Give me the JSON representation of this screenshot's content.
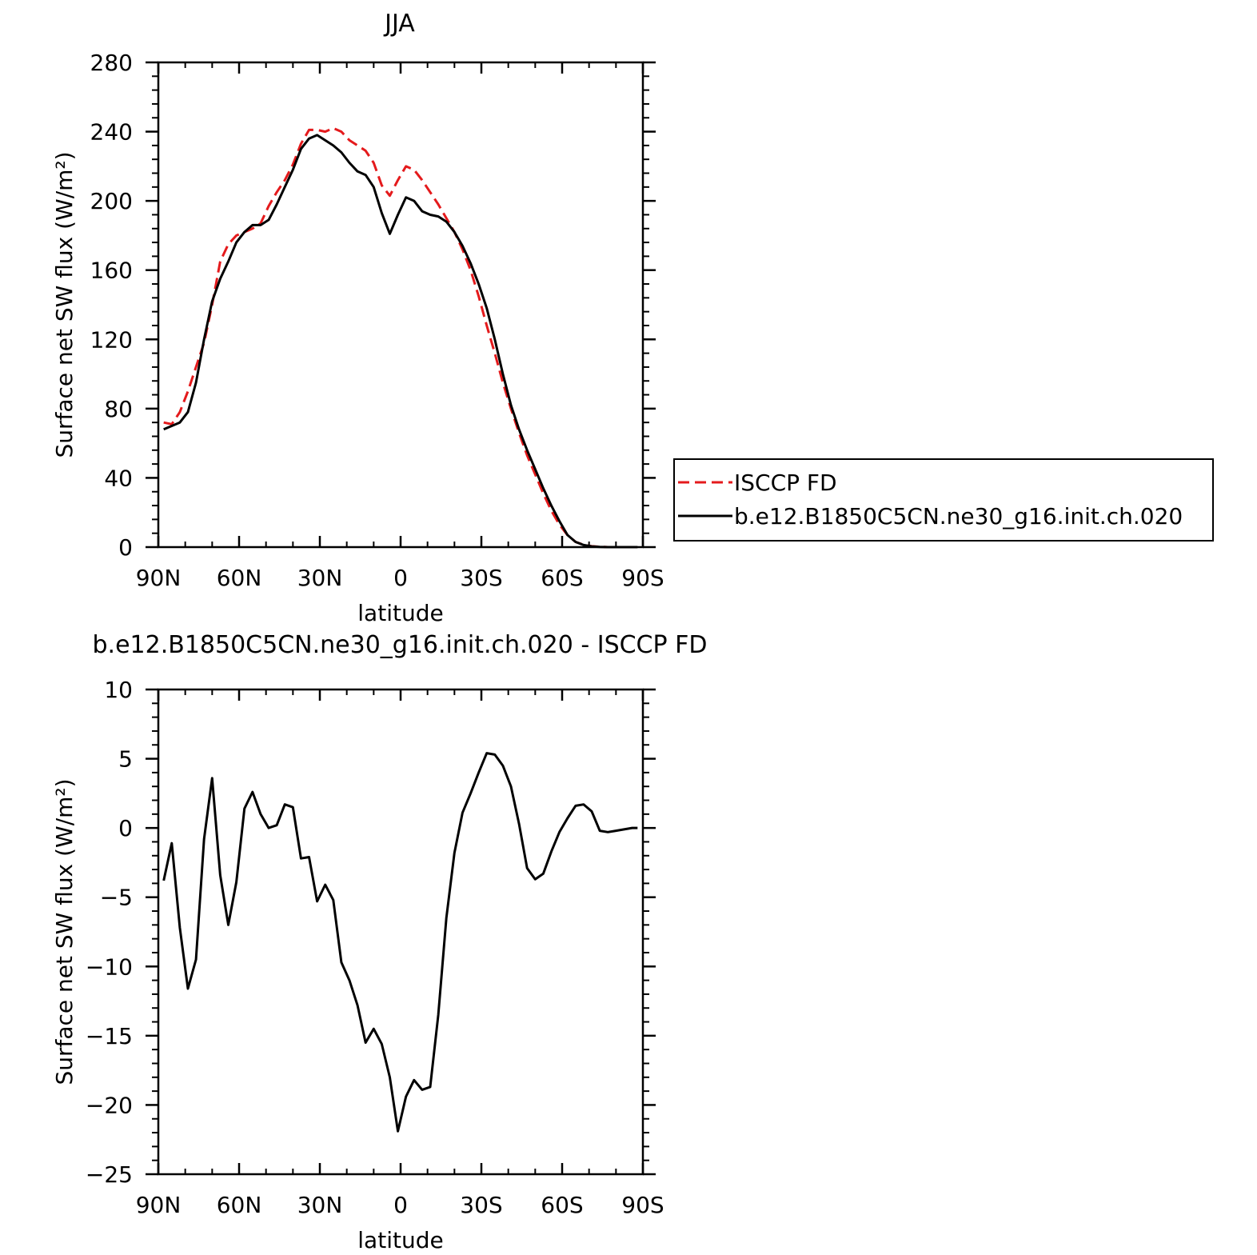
{
  "chart_data": [
    {
      "type": "line",
      "title": "JJA",
      "xlabel": "latitude",
      "ylabel": "Surface net SW flux (W/m²)",
      "xlim": [
        90,
        -90
      ],
      "ylim": [
        0,
        280
      ],
      "xticks": [
        90,
        60,
        30,
        0,
        -30,
        -60,
        -90
      ],
      "xtick_labels": [
        "90N",
        "60N",
        "30N",
        "0",
        "30S",
        "60S",
        "90S"
      ],
      "yticks": [
        0,
        40,
        80,
        120,
        160,
        200,
        240,
        280
      ],
      "ytick_labels": [
        "0",
        "40",
        "80",
        "120",
        "160",
        "200",
        "240",
        "280"
      ],
      "legend": "right",
      "series": [
        {
          "name": "ISCCP FD",
          "color": "#e41a1c",
          "dash": "dashed",
          "x": [
            88,
            85,
            82,
            79,
            76,
            73,
            70,
            67,
            64,
            61,
            58,
            55,
            52,
            49,
            46,
            43,
            40,
            37,
            34,
            31,
            28,
            25,
            22,
            19,
            16,
            13,
            10,
            7,
            4,
            1,
            -2,
            -5,
            -8,
            -11,
            -14,
            -17,
            -20,
            -23,
            -26,
            -29,
            -32,
            -35,
            -38,
            -41,
            -44,
            -47,
            -50,
            -53,
            -56,
            -59,
            -62,
            -65,
            -68,
            -71,
            -74,
            -77,
            -80,
            -83,
            -86,
            -88
          ],
          "y": [
            72,
            71,
            78,
            90,
            104,
            118,
            140,
            165,
            175,
            180,
            182,
            184,
            187,
            197,
            205,
            212,
            221,
            233,
            241,
            241,
            240,
            242,
            240,
            235,
            232,
            229,
            222,
            209,
            203,
            212,
            220,
            218,
            212,
            205,
            198,
            190,
            182,
            172,
            160,
            145,
            128,
            112,
            95,
            80,
            66,
            53,
            42,
            31,
            21,
            13,
            7,
            3,
            1.3,
            0.5,
            0.2,
            0,
            0,
            0,
            0,
            0
          ]
        },
        {
          "name": "b.e12.B1850C5CN.ne30_g16.init.ch.020",
          "color": "#000000",
          "dash": "solid",
          "x": [
            88,
            85,
            82,
            79,
            76,
            73,
            70,
            67,
            64,
            61,
            58,
            55,
            52,
            49,
            46,
            43,
            40,
            37,
            34,
            31,
            28,
            25,
            22,
            19,
            16,
            13,
            10,
            7,
            4,
            1,
            -2,
            -5,
            -8,
            -11,
            -14,
            -17,
            -20,
            -23,
            -26,
            -29,
            -32,
            -35,
            -38,
            -41,
            -44,
            -47,
            -50,
            -53,
            -56,
            -59,
            -62,
            -65,
            -68,
            -71,
            -74,
            -77,
            -80,
            -83,
            -86,
            -88
          ],
          "y": [
            68,
            70,
            72,
            78,
            95,
            120,
            142,
            155,
            165,
            176,
            182,
            186,
            186,
            189,
            198,
            208,
            218,
            230,
            236,
            238,
            235,
            232,
            228,
            222,
            217,
            215,
            208,
            193,
            181,
            192,
            202,
            200,
            194,
            192,
            191,
            188,
            182,
            174,
            164,
            152,
            138,
            120,
            100,
            82,
            68,
            56,
            45,
            34,
            24,
            15,
            7,
            3,
            1.2,
            0.4,
            0.1,
            0,
            0,
            0,
            0,
            0
          ]
        }
      ]
    },
    {
      "type": "line",
      "title": "b.e12.B1850C5CN.ne30_g16.init.ch.020 - ISCCP FD",
      "xlabel": "latitude",
      "ylabel": "Surface net SW flux (W/m²)",
      "xlim": [
        90,
        -90
      ],
      "ylim": [
        -25,
        10
      ],
      "xticks": [
        90,
        60,
        30,
        0,
        -30,
        -60,
        -90
      ],
      "xtick_labels": [
        "90N",
        "60N",
        "30N",
        "0",
        "30S",
        "60S",
        "90S"
      ],
      "yticks": [
        -25,
        -20,
        -15,
        -10,
        -5,
        0,
        5,
        10
      ],
      "ytick_labels": [
        "−25",
        "−20",
        "−15",
        "−10",
        "−5",
        "0",
        "5",
        "10"
      ],
      "series": [
        {
          "color": "#000000",
          "dash": "solid",
          "x": [
            88,
            85,
            82,
            79,
            76,
            73,
            70,
            67,
            64,
            61,
            58,
            55,
            52,
            49,
            46,
            43,
            40,
            37,
            34,
            31,
            28,
            25,
            22,
            19,
            16,
            13,
            10,
            7,
            4,
            1,
            -2,
            -5,
            -8,
            -11,
            -14,
            -17,
            -20,
            -23,
            -26,
            -29,
            -32,
            -35,
            -38,
            -41,
            -44,
            -47,
            -50,
            -53,
            -56,
            -59,
            -62,
            -65,
            -68,
            -71,
            -74,
            -77,
            -80,
            -83,
            -86,
            -88
          ],
          "y": [
            -3.8,
            -1.1,
            -7.2,
            -11.6,
            -9.5,
            -0.8,
            3.6,
            -3.4,
            -7,
            -3.9,
            1.4,
            2.6,
            1,
            0,
            0.2,
            1.7,
            1.5,
            -2.2,
            -2.1,
            -5.3,
            -4.1,
            -5.2,
            -9.7,
            -11,
            -12.8,
            -15.5,
            -14.5,
            -15.6,
            -18,
            -21.9,
            -19.4,
            -18.2,
            -18.9,
            -18.7,
            -13.5,
            -6.5,
            -1.8,
            1.1,
            2.5,
            4,
            5.4,
            5.3,
            4.5,
            3,
            0.3,
            -2.9,
            -3.7,
            -3.3,
            -1.7,
            -0.3,
            0.7,
            1.6,
            1.7,
            1.2,
            -0.2,
            -0.3,
            -0.2,
            -0.1,
            0,
            0
          ]
        }
      ]
    }
  ]
}
